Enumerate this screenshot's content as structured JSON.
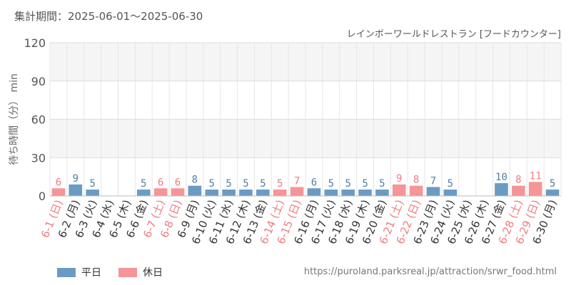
{
  "header": {
    "period": "集計期間：2025-06-01～2025-06-30",
    "title": "レインボーワールドレストラン [フードカウンター]"
  },
  "legend": {
    "weekday_label": "平日",
    "holiday_label": "休日"
  },
  "source": "https://puroland.parksreal.jp/attraction/srwr_food.html",
  "colors": {
    "weekday": "#6b9bc3",
    "holiday": "#f59597",
    "weekday_text": "#4f7eab",
    "holiday_text": "#f07c80",
    "label_weekday": "#333333",
    "label_holiday": "#f07c80"
  },
  "chart_data": {
    "type": "bar",
    "ylabel": "待ち時間（分） min",
    "ylim": [
      0,
      120
    ],
    "yticks": [
      "0",
      "30",
      "60",
      "90",
      "120"
    ],
    "categories": [
      "6-1 (日)",
      "6-2 (月)",
      "6-3 (火)",
      "6-4 (水)",
      "6-5 (木)",
      "6-6 (金)",
      "6-7 (土)",
      "6-8 (日)",
      "6-9 (月)",
      "6-10 (火)",
      "6-11 (水)",
      "6-12 (木)",
      "6-13 (金)",
      "6-14 (土)",
      "6-15 (日)",
      "6-16 (月)",
      "6-17 (火)",
      "6-18 (水)",
      "6-19 (木)",
      "6-20 (金)",
      "6-21 (土)",
      "6-22 (日)",
      "6-23 (月)",
      "6-24 (火)",
      "6-25 (水)",
      "6-26 (木)",
      "6-27 (金)",
      "6-28 (土)",
      "6-29 (日)",
      "6-30 (月)"
    ],
    "values": [
      6,
      9,
      5,
      null,
      null,
      5,
      6,
      6,
      8,
      5,
      5,
      5,
      5,
      5,
      7,
      6,
      5,
      5,
      5,
      5,
      9,
      8,
      7,
      5,
      null,
      null,
      10,
      8,
      11,
      5
    ],
    "holiday": [
      true,
      false,
      false,
      false,
      false,
      false,
      true,
      true,
      false,
      false,
      false,
      false,
      false,
      true,
      true,
      false,
      false,
      false,
      false,
      false,
      true,
      true,
      false,
      false,
      false,
      false,
      false,
      true,
      true,
      false
    ],
    "grid": true
  }
}
